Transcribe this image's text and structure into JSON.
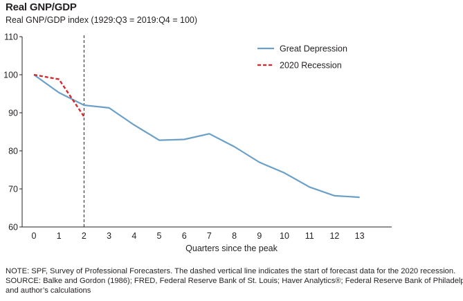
{
  "chart_data": {
    "type": "line",
    "title": "Real GNP/GDP",
    "ylabel": "Real GNP/GDP index (1929:Q3 = 2019:Q4 = 100)",
    "xlabel": "Quarters since the peak",
    "ylim": [
      60,
      110
    ],
    "yticks": [
      60,
      70,
      80,
      90,
      100,
      110
    ],
    "xticks": [
      0,
      1,
      2,
      3,
      4,
      5,
      6,
      7,
      8,
      9,
      10,
      11,
      12,
      13
    ],
    "grid": false,
    "legend_position": "top-right",
    "series": [
      {
        "name": "Great Depression",
        "color": "#6a9fc8",
        "style": "solid",
        "x": [
          0,
          1,
          2,
          3,
          4,
          5,
          6,
          7,
          8,
          9,
          10,
          11,
          12,
          13
        ],
        "values": [
          100,
          95.3,
          92.0,
          91.3,
          86.8,
          82.8,
          83.0,
          84.5,
          81.1,
          77.0,
          74.2,
          70.5,
          68.2,
          67.8
        ]
      },
      {
        "name": "2020 Recession",
        "color": "#d7262c",
        "style": "dashed",
        "x": [
          0,
          1,
          2
        ],
        "values": [
          100,
          98.8,
          89.0
        ]
      }
    ],
    "vline": {
      "x": 2,
      "style": "dashed",
      "color": "#231f20"
    }
  },
  "notes": {
    "line1": "NOTE: SPF, Survey of Professional Forecasters. The dashed vertical line indicates the start of forecast data for the 2020 recession.",
    "line2": "SOURCE: Balke and Gordon (1986); FRED, Federal Reserve Bank of St. Louis; Haver Analytics®; Federal Reserve Bank of Philadelphia;",
    "line3": "and author’s calculations"
  }
}
